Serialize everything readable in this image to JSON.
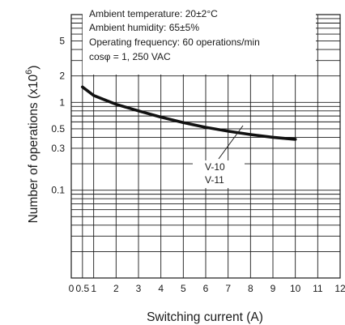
{
  "chart_data": {
    "type": "line",
    "title": "",
    "xlabel": "Switching current (A)",
    "ylabel_main": "Number of operations  (x10",
    "ylabel_exp": "6",
    "ylabel_close": ")",
    "xlim": [
      0,
      12
    ],
    "ylim": [
      0.01,
      10
    ],
    "y_scale": "log",
    "x_tick_labels": [
      "0",
      "0.5",
      "1",
      "2",
      "3",
      "4",
      "5",
      "6",
      "7",
      "8",
      "9",
      "10",
      "11",
      "12"
    ],
    "x_tick_values": [
      0,
      0.5,
      1,
      2,
      3,
      4,
      5,
      6,
      7,
      8,
      9,
      10,
      11,
      12
    ],
    "y_tick_labels": [
      "5",
      "2",
      "1",
      "0.5",
      "0.3",
      "0.1"
    ],
    "y_tick_values": [
      5,
      2,
      1,
      0.5,
      0.3,
      0.1
    ],
    "grid": true,
    "conditions": [
      "Ambient temperature: 20±2°C",
      "Ambient humidity: 65±5%",
      "Operating frequency: 60 operations/min",
      "cosφ = 1, 250 VAC"
    ],
    "series": [
      {
        "name": "V-10",
        "x": [
          0.5,
          1,
          2,
          3,
          4,
          5,
          6,
          7,
          8,
          9,
          10
        ],
        "y": [
          1.5,
          1.2,
          0.95,
          0.8,
          0.68,
          0.59,
          0.52,
          0.47,
          0.43,
          0.4,
          0.38
        ]
      }
    ],
    "series_labels": [
      "V-10",
      "V-11"
    ]
  }
}
